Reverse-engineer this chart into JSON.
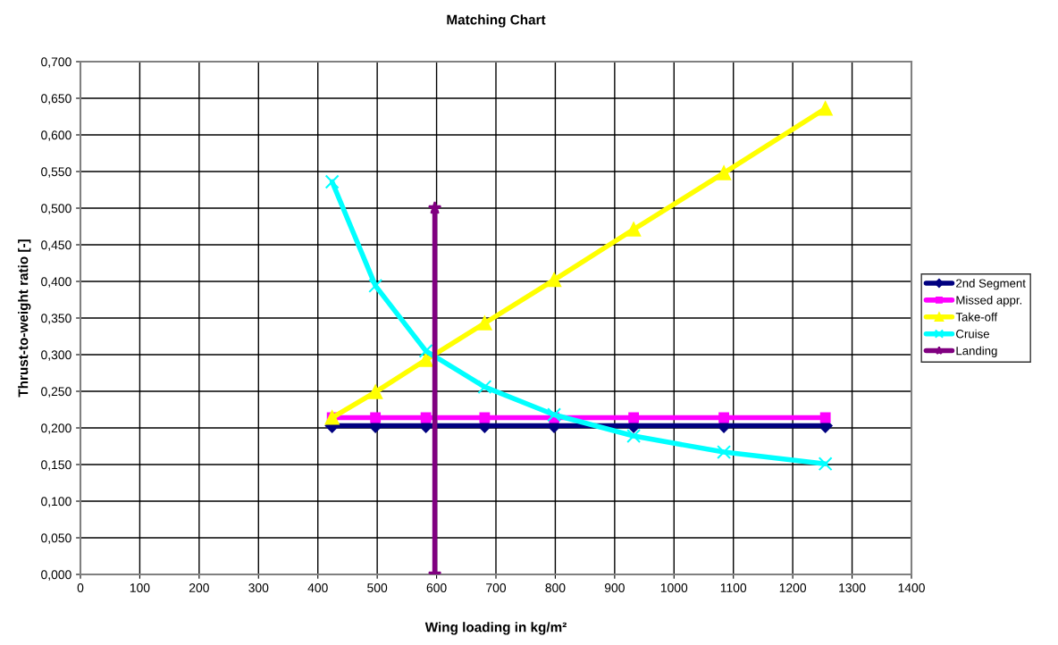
{
  "chart_data": {
    "type": "line",
    "title": "Matching Chart",
    "xlabel": "Wing loading in kg/m²",
    "ylabel": "Thrust-to-weight ratio [-]",
    "xlim": [
      0,
      1400
    ],
    "xticks": [
      0,
      100,
      200,
      300,
      400,
      500,
      600,
      700,
      800,
      900,
      1000,
      1100,
      1200,
      1300,
      1400
    ],
    "ylim": [
      0,
      0.7
    ],
    "yticks": [
      {
        "value": 0,
        "label": "0,000"
      },
      {
        "value": 0.05,
        "label": "0,050"
      },
      {
        "value": 0.1,
        "label": "0,100"
      },
      {
        "value": 0.15,
        "label": "0,150"
      },
      {
        "value": 0.2,
        "label": "0,200"
      },
      {
        "value": 0.25,
        "label": "0,250"
      },
      {
        "value": 0.3,
        "label": "0,300"
      },
      {
        "value": 0.35,
        "label": "0,350"
      },
      {
        "value": 0.4,
        "label": "0,400"
      },
      {
        "value": 0.45,
        "label": "0,450"
      },
      {
        "value": 0.5,
        "label": "0,500"
      },
      {
        "value": 0.55,
        "label": "0,550"
      },
      {
        "value": 0.6,
        "label": "0,600"
      },
      {
        "value": 0.65,
        "label": "0,650"
      },
      {
        "value": 0.7,
        "label": "0,700"
      }
    ],
    "grid": true,
    "legend": "right",
    "line_style": "solid",
    "series": [
      {
        "name": "2nd Segment",
        "color": "#000080",
        "marker": "diamond",
        "x": [
          424,
          497,
          582,
          681,
          798,
          932,
          1084,
          1255
        ],
        "values": [
          0.203,
          0.203,
          0.203,
          0.203,
          0.203,
          0.203,
          0.203,
          0.203
        ]
      },
      {
        "name": "Missed appr.",
        "color": "#ff00ff",
        "marker": "square",
        "x": [
          424,
          497,
          582,
          681,
          798,
          932,
          1084,
          1255
        ],
        "values": [
          0.214,
          0.214,
          0.214,
          0.214,
          0.214,
          0.214,
          0.214,
          0.214
        ]
      },
      {
        "name": "Take-off",
        "color": "#ffff00",
        "marker": "triangle",
        "x": [
          424,
          497,
          582,
          681,
          798,
          932,
          1084,
          1255
        ],
        "values": [
          0.214,
          0.249,
          0.293,
          0.343,
          0.402,
          0.471,
          0.548,
          0.636
        ]
      },
      {
        "name": "Cruise",
        "color": "#00ffff",
        "marker": "cross",
        "x": [
          424,
          497,
          582,
          681,
          798,
          932,
          1084,
          1255
        ],
        "values": [
          0.536,
          0.394,
          0.305,
          0.256,
          0.218,
          0.189,
          0.167,
          0.151
        ]
      },
      {
        "name": "Landing",
        "color": "#800080",
        "marker": "star",
        "x": [
          597,
          597
        ],
        "values": [
          0,
          0.5
        ]
      }
    ]
  }
}
